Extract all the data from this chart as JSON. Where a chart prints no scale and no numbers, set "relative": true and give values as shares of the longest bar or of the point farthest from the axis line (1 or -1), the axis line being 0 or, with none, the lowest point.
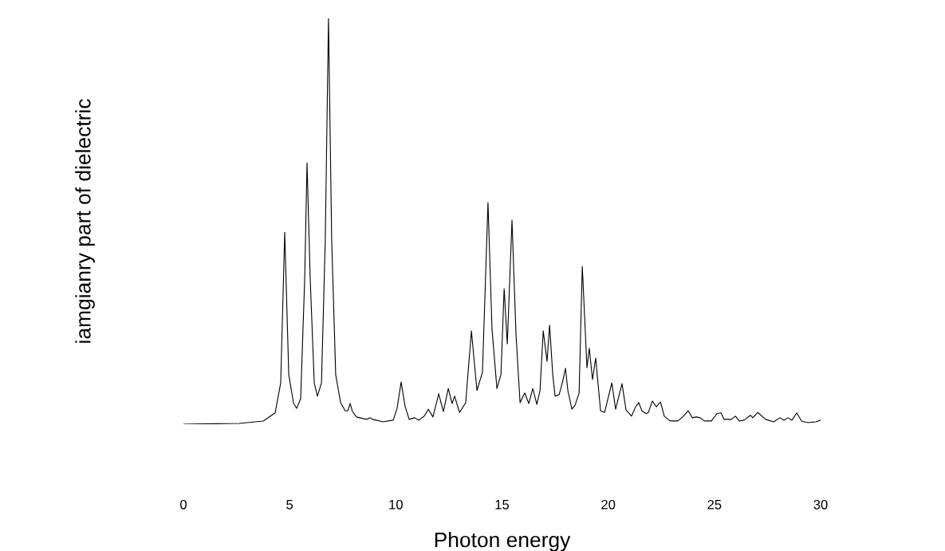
{
  "chart_data": {
    "type": "line",
    "xlabel": "Photon energy",
    "ylabel": "iamgianry part of dielectric",
    "relative": true,
    "tick_labels": "x",
    "grid": false,
    "legend": false,
    "marker": "none",
    "line_style": "solid",
    "xlim": [
      0,
      30
    ],
    "xticks": [
      0,
      5,
      10,
      15,
      20,
      25,
      30
    ],
    "series": [
      {
        "color": "#000000",
        "x": [
          0,
          2.63,
          3.76,
          4.32,
          4.58,
          4.77,
          4.96,
          5.18,
          5.33,
          5.52,
          5.71,
          5.82,
          5.97,
          6.16,
          6.31,
          6.5,
          6.68,
          6.83,
          6.98,
          7.17,
          7.4,
          7.62,
          7.74,
          7.85,
          7.96,
          8.15,
          8.45,
          8.64,
          8.79,
          8.9,
          9.39,
          9.88,
          10.06,
          10.25,
          10.44,
          10.63,
          10.89,
          11.08,
          11.34,
          11.53,
          11.75,
          12.02,
          12.24,
          12.47,
          12.65,
          12.77,
          13.0,
          13.29,
          13.56,
          13.82,
          14.08,
          14.34,
          14.53,
          14.76,
          14.95,
          15.1,
          15.25,
          15.47,
          15.66,
          15.85,
          16.07,
          16.26,
          16.45,
          16.64,
          16.79,
          16.94,
          17.12,
          17.24,
          17.39,
          17.5,
          17.69,
          17.84,
          17.99,
          18.1,
          18.29,
          18.44,
          18.63,
          18.78,
          19.0,
          19.11,
          19.26,
          19.41,
          19.64,
          19.83,
          20.17,
          20.35,
          20.65,
          20.84,
          21.1,
          21.29,
          21.44,
          21.59,
          21.78,
          21.89,
          22.08,
          22.27,
          22.46,
          22.64,
          22.91,
          23.28,
          23.54,
          23.77,
          23.96,
          24.15,
          24.33,
          24.52,
          24.86,
          25.12,
          25.31,
          25.46,
          25.8,
          25.99,
          26.17,
          26.4,
          26.7,
          26.81,
          27.04,
          27.41,
          27.79,
          28.09,
          28.28,
          28.46,
          28.65,
          28.88,
          29.1,
          29.4,
          29.78,
          30.0
        ],
        "values": [
          0,
          0.002,
          0.008,
          0.028,
          0.102,
          0.473,
          0.122,
          0.053,
          0.039,
          0.063,
          0.358,
          0.644,
          0.358,
          0.102,
          0.069,
          0.102,
          0.456,
          1,
          0.456,
          0.122,
          0.053,
          0.033,
          0.033,
          0.051,
          0.031,
          0.018,
          0.014,
          0.012,
          0.016,
          0.012,
          0.006,
          0.01,
          0.039,
          0.104,
          0.043,
          0.012,
          0.016,
          0.01,
          0.02,
          0.037,
          0.018,
          0.075,
          0.031,
          0.088,
          0.051,
          0.069,
          0.029,
          0.053,
          0.23,
          0.083,
          0.128,
          0.546,
          0.234,
          0.088,
          0.122,
          0.334,
          0.198,
          0.503,
          0.22,
          0.053,
          0.077,
          0.051,
          0.088,
          0.049,
          0.083,
          0.23,
          0.155,
          0.244,
          0.122,
          0.069,
          0.073,
          0.102,
          0.138,
          0.083,
          0.037,
          0.047,
          0.077,
          0.389,
          0.139,
          0.187,
          0.11,
          0.163,
          0.033,
          0.029,
          0.102,
          0.037,
          0.1,
          0.035,
          0.02,
          0.043,
          0.053,
          0.033,
          0.026,
          0.029,
          0.057,
          0.043,
          0.055,
          0.02,
          0.008,
          0.008,
          0.02,
          0.033,
          0.016,
          0.018,
          0.016,
          0.008,
          0.008,
          0.026,
          0.028,
          0.012,
          0.012,
          0.02,
          0.008,
          0.01,
          0.022,
          0.016,
          0.029,
          0.012,
          0.006,
          0.016,
          0.01,
          0.016,
          0.01,
          0.028,
          0.008,
          0.004,
          0.006,
          0.01
        ]
      }
    ]
  }
}
